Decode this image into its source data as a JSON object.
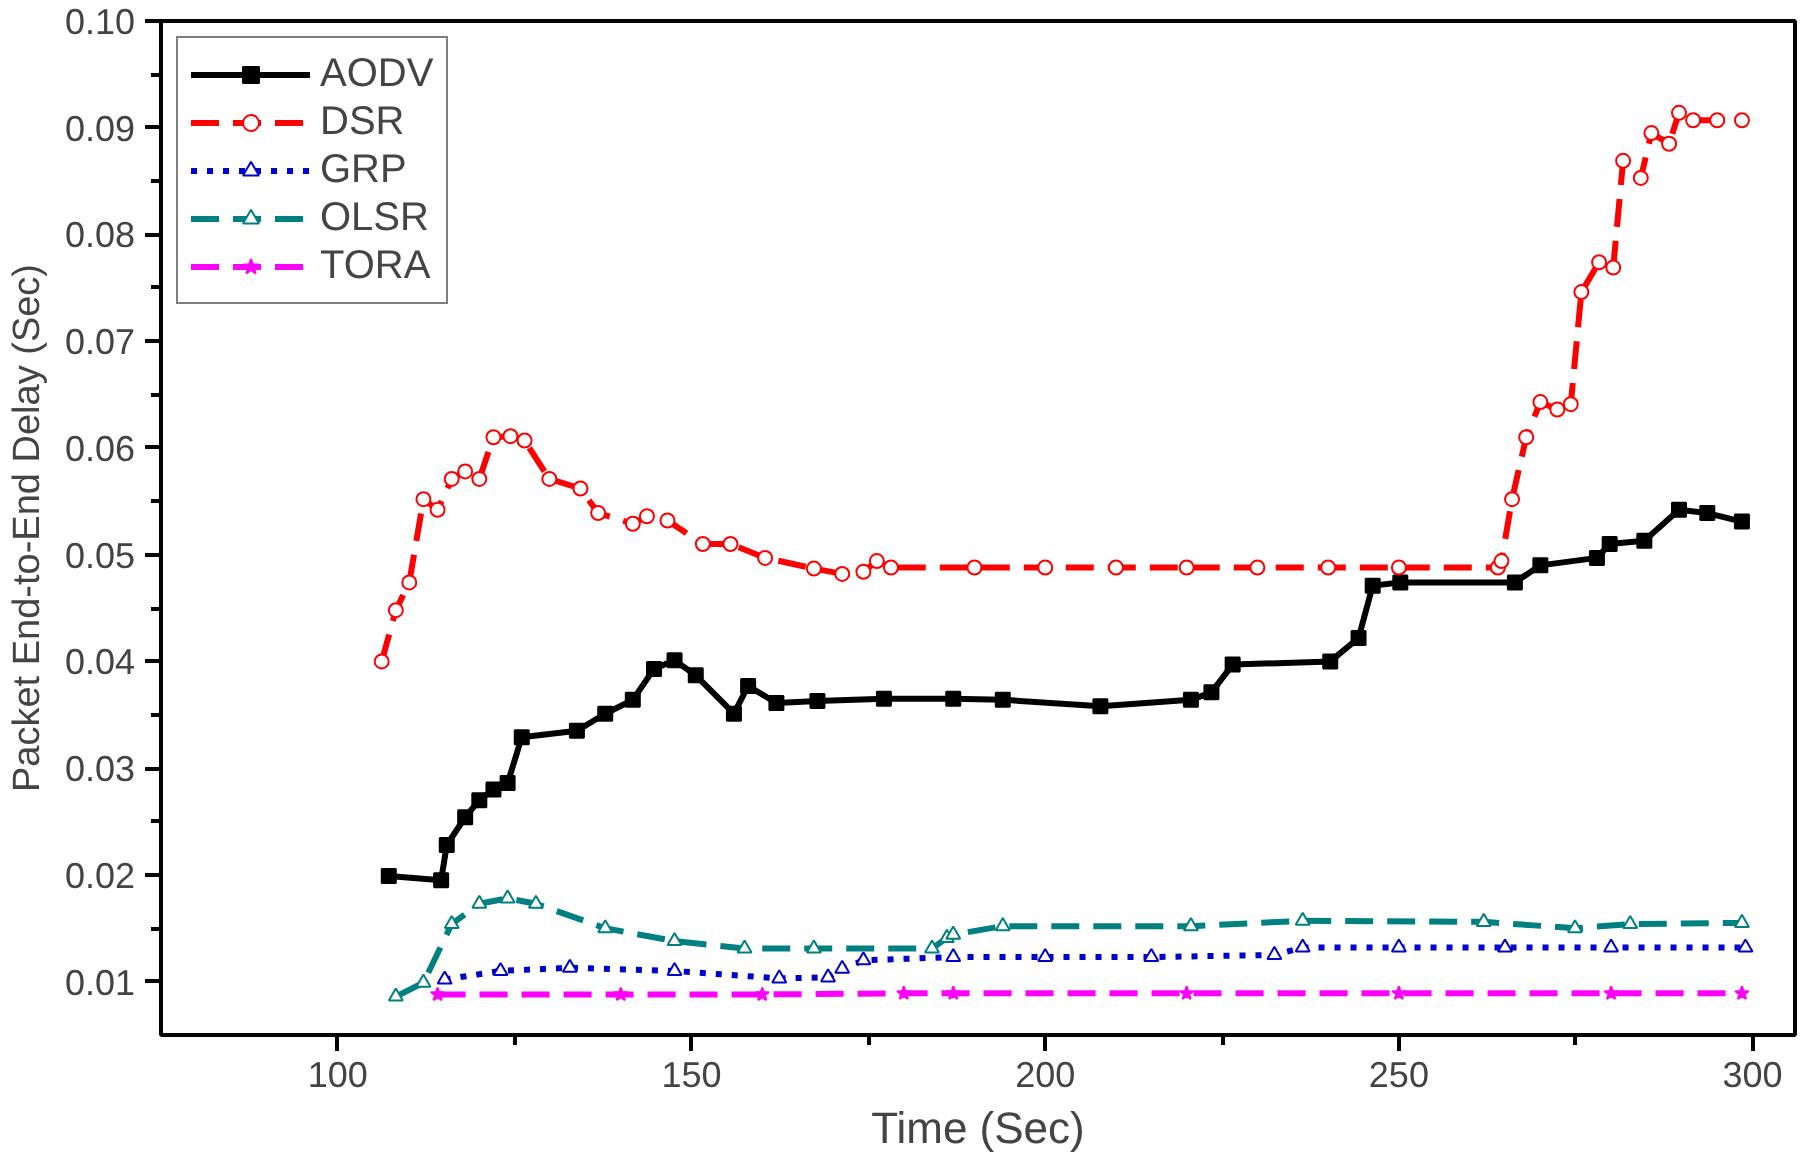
{
  "chart_data": {
    "type": "line",
    "xlabel": "Time (Sec)",
    "ylabel": "Packet End-to-End Delay (Sec)",
    "xlim": [
      75,
      306
    ],
    "xticks": [
      100,
      150,
      200,
      250,
      300
    ],
    "ylim": [
      0.005,
      0.1
    ],
    "yticks": [
      0.01,
      0.02,
      0.03,
      0.04,
      0.05,
      0.06,
      0.07,
      0.08,
      0.09,
      {
        "value": 0.1,
        "label": "0.10"
      }
    ],
    "grid": false,
    "legend": "top left",
    "series": [
      {
        "name": "AODV",
        "color": "#000000",
        "marker": "square",
        "line_style": "solid",
        "x": [
          107.2,
          114.6,
          115.4,
          118,
          120,
          122,
          124,
          126,
          133.8,
          137.8,
          141.7,
          144.7,
          147.6,
          150.6,
          156,
          158,
          162,
          167.8,
          177.2,
          187,
          194,
          207.8,
          220.6,
          223.5,
          226.5,
          240.3,
          244.3,
          246.3,
          250.2,
          266.4,
          270,
          278,
          279.8,
          284.7,
          289.6,
          293.6,
          298.5
        ],
        "values": [
          0.0199,
          0.0195,
          0.0228,
          0.0254,
          0.027,
          0.028,
          0.0286,
          0.0329,
          0.0335,
          0.0351,
          0.0364,
          0.0393,
          0.0401,
          0.0387,
          0.0351,
          0.0377,
          0.0361,
          0.0363,
          0.0365,
          0.0365,
          0.0364,
          0.0358,
          0.0364,
          0.0371,
          0.0397,
          0.04,
          0.0422,
          0.0471,
          0.0474,
          0.0474,
          0.049,
          0.0497,
          0.051,
          0.0513,
          0.0542,
          0.0539,
          0.0531
        ]
      },
      {
        "name": "DSR",
        "color": "#ff0000",
        "marker": "circle",
        "line_style": "dashed",
        "x": [
          106.2,
          108.2,
          110.1,
          112.1,
          114.1,
          116.1,
          118,
          120,
          122,
          124.4,
          126.4,
          129.9,
          134.3,
          136.8,
          141.7,
          143.7,
          146.6,
          151.6,
          155.5,
          160.4,
          167.3,
          171.3,
          174.3,
          176.2,
          178.2,
          190,
          200,
          210,
          220,
          230,
          240,
          250,
          264,
          264.5,
          266,
          268,
          270,
          272.4,
          274.3,
          275.8,
          278.3,
          280.3,
          281.7,
          284.2,
          285.7,
          288.2,
          289.6,
          291.6,
          295,
          298.5
        ],
        "values": [
          0.04,
          0.0448,
          0.0474,
          0.0552,
          0.0542,
          0.0571,
          0.0578,
          0.0571,
          0.061,
          0.0611,
          0.0607,
          0.0571,
          0.0562,
          0.0539,
          0.0529,
          0.0536,
          0.0532,
          0.051,
          0.051,
          0.0497,
          0.0487,
          0.0482,
          0.0484,
          0.0494,
          0.0488,
          0.0488,
          0.0488,
          0.0488,
          0.0488,
          0.0488,
          0.0488,
          0.0488,
          0.0488,
          0.0494,
          0.0552,
          0.061,
          0.0643,
          0.0636,
          0.0641,
          0.0746,
          0.0774,
          0.0769,
          0.0869,
          0.0853,
          0.0895,
          0.0885,
          0.0914,
          0.0907,
          0.0907,
          0.0907
        ]
      },
      {
        "name": "GRP",
        "color": "#0000cc",
        "marker": "triangle",
        "line_style": "dotted",
        "x": [
          115.1,
          123,
          132.8,
          147.6,
          162.4,
          169.3,
          171.3,
          174.3,
          187,
          200,
          215,
          232.4,
          236.4,
          250,
          265,
          280,
          299
        ],
        "values": [
          0.0102,
          0.011,
          0.0113,
          0.011,
          0.0103,
          0.0104,
          0.0112,
          0.012,
          0.0123,
          0.0123,
          0.0123,
          0.0125,
          0.0132,
          0.0132,
          0.0132,
          0.0132,
          0.0132
        ]
      },
      {
        "name": "OLSR",
        "color": "#008080",
        "marker": "triangle",
        "line_style": "dashed",
        "x": [
          108.2,
          112.1,
          116.1,
          120,
          124,
          128,
          137.8,
          147.6,
          157.5,
          167.3,
          184,
          186.1,
          187,
          194,
          220.6,
          236.4,
          262,
          274.9,
          282.7,
          298.5
        ],
        "values": [
          0.0086,
          0.0099,
          0.0154,
          0.0173,
          0.0178,
          0.0173,
          0.015,
          0.0138,
          0.0131,
          0.0131,
          0.0131,
          0.0141,
          0.0144,
          0.0152,
          0.0152,
          0.0157,
          0.0156,
          0.015,
          0.0154,
          0.0155
        ]
      },
      {
        "name": "TORA",
        "color": "#ff00ff",
        "marker": "star",
        "line_style": "dashed",
        "x": [
          114.1,
          140,
          160,
          180,
          187,
          220,
          250,
          280,
          298.5
        ],
        "values": [
          0.0088,
          0.0088,
          0.0088,
          0.0089,
          0.0089,
          0.0089,
          0.0089,
          0.0089,
          0.0089
        ]
      }
    ]
  }
}
